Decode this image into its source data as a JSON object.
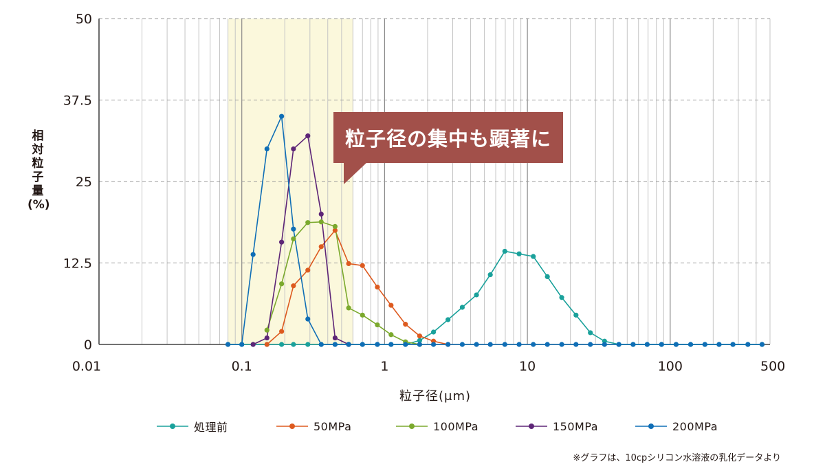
{
  "chart_data": {
    "type": "line",
    "xscale": "log",
    "xlim": [
      0.01,
      500
    ],
    "ylim": [
      0,
      50
    ],
    "x_ticks": [
      {
        "value": 0.01,
        "label": "0.01"
      },
      {
        "value": 0.1,
        "label": "0.1"
      },
      {
        "value": 1,
        "label": "1"
      },
      {
        "value": 10,
        "label": "10"
      },
      {
        "value": 100,
        "label": "100"
      },
      {
        "value": 500,
        "label": "500"
      }
    ],
    "y_ticks": [
      {
        "value": 0,
        "label": "0"
      },
      {
        "value": 12.5,
        "label": "12.5"
      },
      {
        "value": 25,
        "label": "25"
      },
      {
        "value": 37.5,
        "label": "37.5"
      },
      {
        "value": 50,
        "label": "50"
      }
    ],
    "ylabel": "相対粒子量(%)",
    "xlabel": "粒子径(μm)",
    "grid": {
      "x_minor_lines": true,
      "y_dashed": true
    },
    "highlight_band": {
      "x_from": 0.08,
      "x_to": 0.6,
      "color": "#fbf8dc"
    },
    "annotation": "粒子径の集中も顕著に",
    "legend_position": "bottom",
    "x": [
      0.08,
      0.1,
      0.12,
      0.15,
      0.19,
      0.23,
      0.29,
      0.36,
      0.45,
      0.56,
      0.7,
      0.89,
      1.11,
      1.4,
      1.76,
      2.2,
      2.78,
      3.5,
      4.4,
      5.5,
      6.95,
      8.75,
      11,
      13.8,
      17.4,
      21.9,
      27.6,
      34.7,
      43.7,
      55,
      69,
      87,
      110,
      139,
      175,
      220,
      275,
      350,
      440
    ],
    "series": [
      {
        "name": "処理前",
        "color": "#1aa19b",
        "values": [
          0,
          0,
          0,
          0,
          0,
          0,
          0,
          0,
          0,
          0,
          0,
          0,
          0,
          0,
          0.6,
          1.9,
          3.8,
          5.7,
          7.6,
          10.7,
          14.3,
          13.9,
          13.5,
          10.4,
          7.2,
          4.5,
          1.8,
          0.5,
          0,
          0,
          0,
          0,
          0,
          0,
          0,
          0,
          0,
          0,
          0
        ]
      },
      {
        "name": "50MPa",
        "color": "#dd5a1f",
        "values": [
          null,
          null,
          null,
          0,
          2,
          9,
          11.4,
          15,
          17.5,
          12.4,
          12.1,
          8.8,
          6,
          3.1,
          1.3,
          0.5,
          0,
          null,
          null,
          null,
          null,
          null,
          null,
          null,
          null,
          null,
          null,
          null,
          null,
          null,
          null,
          null,
          null,
          null,
          null,
          null,
          null,
          null,
          null
        ]
      },
      {
        "name": "100MPa",
        "color": "#7ba92d",
        "values": [
          null,
          null,
          null,
          2.2,
          9.3,
          16.2,
          18.7,
          18.8,
          18.1,
          5.6,
          4.5,
          3,
          1.5,
          0.4,
          0,
          null,
          null,
          null,
          null,
          null,
          null,
          null,
          null,
          null,
          null,
          null,
          null,
          null,
          null,
          null,
          null,
          null,
          null,
          null,
          null,
          null,
          null,
          null,
          null
        ]
      },
      {
        "name": "150MPa",
        "color": "#5d2577",
        "values": [
          null,
          null,
          0,
          1,
          15.7,
          30,
          32,
          20,
          1,
          0,
          null,
          null,
          null,
          null,
          null,
          null,
          null,
          null,
          null,
          null,
          null,
          null,
          null,
          null,
          null,
          null,
          null,
          null,
          null,
          null,
          null,
          null,
          null,
          null,
          null,
          null,
          null,
          null,
          null
        ]
      },
      {
        "name": "200MPa",
        "color": "#0f6eb6",
        "values": [
          0,
          0,
          13.8,
          30,
          35,
          17.7,
          3.9,
          0,
          0,
          0,
          0,
          0,
          0,
          0,
          0,
          0,
          0,
          0,
          0,
          0,
          0,
          0,
          0,
          0,
          0,
          0,
          0,
          0,
          0,
          0,
          0,
          0,
          0,
          0,
          0,
          0,
          0,
          0,
          0
        ]
      }
    ]
  },
  "ylabel_chars": [
    "相",
    "対",
    "粒",
    "子",
    "量",
    "(%)"
  ],
  "footnote": "※グラフは、10cpシリコン水溶液の乳化データより"
}
